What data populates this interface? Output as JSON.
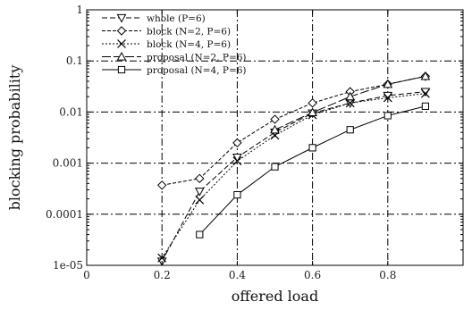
{
  "chart_data": {
    "type": "line",
    "title": "",
    "xlabel": "offered load",
    "ylabel": "blocking probability",
    "xlim": [
      0,
      1
    ],
    "ylim": [
      1e-05,
      1
    ],
    "yscale": "log",
    "grid": true,
    "legend_position": "top-left",
    "x_ticks": [
      {
        "value": 0,
        "label": "0"
      },
      {
        "value": 0.2,
        "label": "0.2"
      },
      {
        "value": 0.4,
        "label": "0.4"
      },
      {
        "value": 0.6,
        "label": "0.6"
      },
      {
        "value": 0.8,
        "label": "0.8"
      }
    ],
    "y_ticks": [
      {
        "value": 1,
        "label": "1"
      },
      {
        "value": 0.1,
        "label": "0.1"
      },
      {
        "value": 0.01,
        "label": "0.01"
      },
      {
        "value": 0.001,
        "label": "0.001"
      },
      {
        "value": 0.0001,
        "label": "0.0001"
      },
      {
        "value": 1e-05,
        "label": "1e-05"
      }
    ],
    "series": [
      {
        "name": "whole (P=6)",
        "marker": "triangle-down",
        "dash": "6,3",
        "x": [
          0.2,
          0.3,
          0.4,
          0.5,
          0.6,
          0.7,
          0.8,
          0.9
        ],
        "y": [
          1.2e-05,
          0.00028,
          0.0013,
          0.004,
          0.0095,
          0.015,
          0.021,
          0.025
        ]
      },
      {
        "name": "block (N=2, P=6)",
        "marker": "diamond",
        "dash": "4,2",
        "x": [
          0.2,
          0.3,
          0.4,
          0.5,
          0.6,
          0.7,
          0.8,
          0.9
        ],
        "y": [
          0.00037,
          0.0005,
          0.0025,
          0.0072,
          0.015,
          0.025,
          0.035,
          0.05
        ]
      },
      {
        "name": "block (N=4, P=6)",
        "marker": "x",
        "dash": "2,2",
        "x": [
          0.2,
          0.3,
          0.4,
          0.5,
          0.6,
          0.7,
          0.8,
          0.9
        ],
        "y": [
          1.4e-05,
          0.00019,
          0.0011,
          0.0035,
          0.0088,
          0.015,
          0.019,
          0.023
        ]
      },
      {
        "name": "proposal (N=2, P=6)",
        "marker": "triangle-up",
        "dash": "10,3",
        "x": [
          0.5,
          0.6,
          0.7,
          0.8,
          0.9
        ],
        "y": [
          0.0045,
          0.0098,
          0.02,
          0.035,
          0.05
        ]
      },
      {
        "name": "proposal (N=4, P=6)",
        "marker": "square",
        "dash": "",
        "x": [
          0.3,
          0.4,
          0.5,
          0.6,
          0.7,
          0.8,
          0.9
        ],
        "y": [
          4e-05,
          0.00024,
          0.00085,
          0.002,
          0.0045,
          0.0085,
          0.013
        ]
      }
    ]
  }
}
